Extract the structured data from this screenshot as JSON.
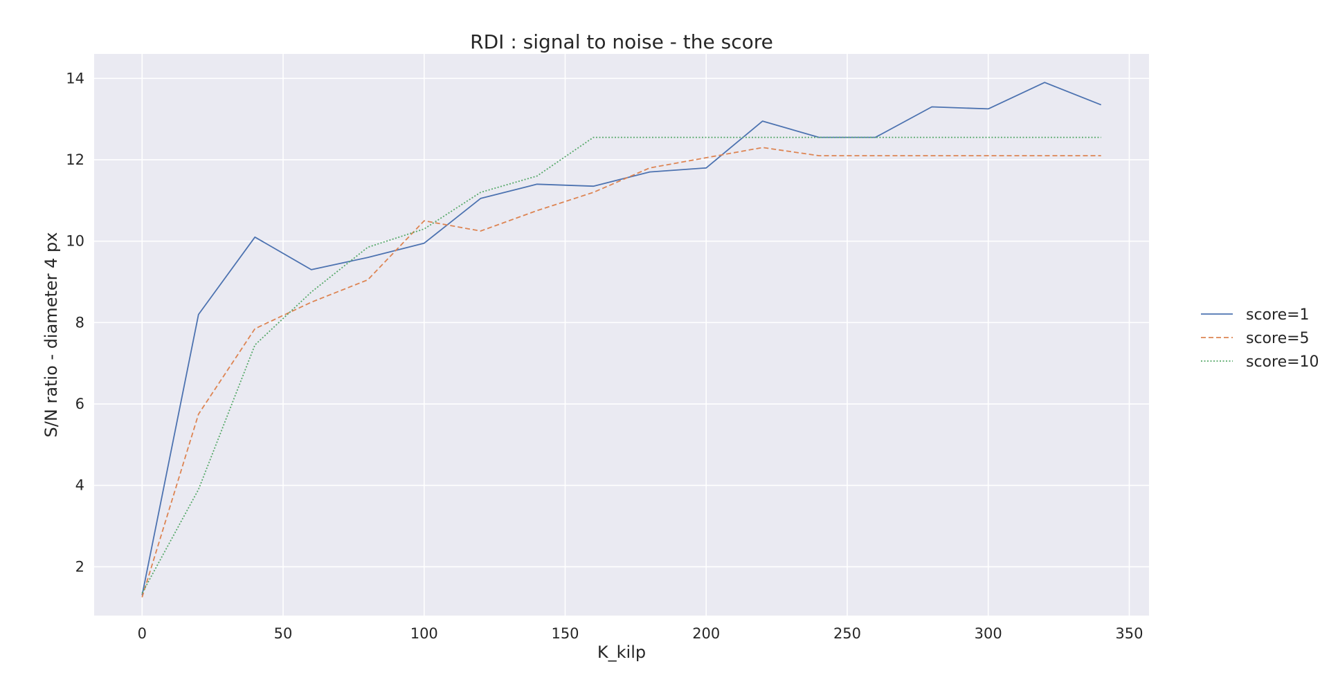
{
  "chart_data": {
    "type": "line",
    "title": "RDI : signal to noise - the score",
    "xlabel": "K_kilp",
    "ylabel": "S/N ratio - diameter 4 px",
    "xlim": [
      -17,
      357
    ],
    "ylim": [
      0.8,
      14.6
    ],
    "xticks": [
      0,
      50,
      100,
      150,
      200,
      250,
      300,
      350
    ],
    "yticks": [
      2,
      4,
      6,
      8,
      10,
      12,
      14
    ],
    "grid": true,
    "legend": "outside-right",
    "x": [
      0,
      20,
      40,
      60,
      80,
      100,
      120,
      140,
      160,
      180,
      200,
      220,
      240,
      260,
      280,
      300,
      320,
      340
    ],
    "series": [
      {
        "name": "score=1",
        "color": "#4c72b0",
        "dash": "solid",
        "values": [
          1.3,
          8.2,
          10.1,
          9.3,
          9.6,
          9.95,
          11.05,
          11.4,
          11.35,
          11.7,
          11.8,
          12.95,
          12.55,
          12.55,
          13.3,
          13.25,
          13.9,
          13.35
        ]
      },
      {
        "name": "score=5",
        "color": "#dd8452",
        "dash": "dashed",
        "values": [
          1.25,
          5.75,
          7.85,
          8.5,
          9.05,
          10.5,
          10.25,
          10.75,
          11.2,
          11.8,
          12.05,
          12.3,
          12.1,
          12.1,
          12.1,
          12.1,
          12.1,
          12.1
        ]
      },
      {
        "name": "score=10",
        "color": "#55a868",
        "dash": "dotted",
        "values": [
          1.35,
          3.9,
          7.45,
          8.75,
          9.85,
          10.3,
          11.2,
          11.6,
          12.55,
          12.55,
          12.55,
          12.55,
          12.55,
          12.55,
          12.55,
          12.55,
          12.55,
          12.55
        ]
      }
    ]
  }
}
